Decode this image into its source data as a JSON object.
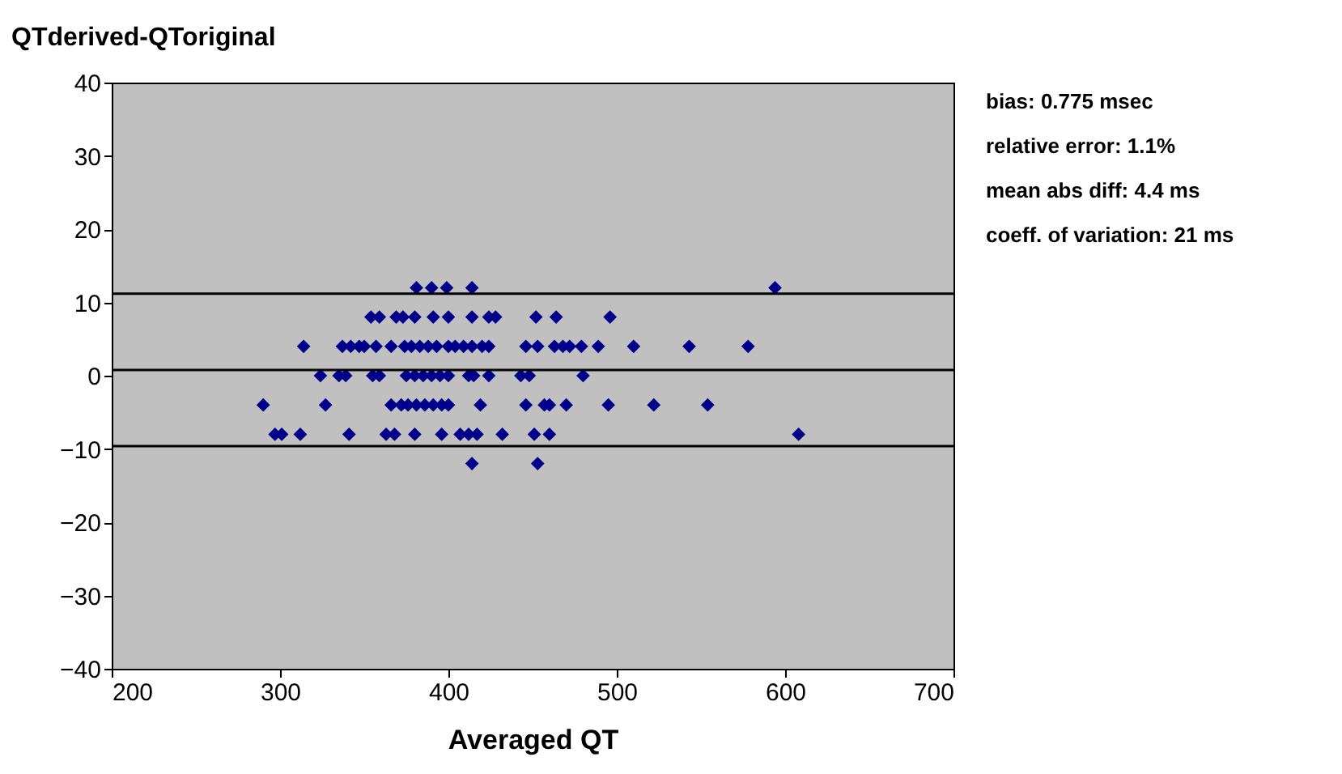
{
  "chart_data": {
    "type": "scatter",
    "title": "QTderived-QToriginal",
    "xlabel": "Averaged QT",
    "xlim": [
      200,
      700
    ],
    "xticks": [
      200,
      300,
      400,
      500,
      600,
      700
    ],
    "ylim": [
      -40,
      40
    ],
    "yticks": [
      -40,
      -30,
      -20,
      -10,
      0,
      10,
      20,
      30,
      40
    ],
    "grid": false,
    "marker": "diamond",
    "series": [
      {
        "color": "#00008b",
        "x": [
          381,
          390,
          399,
          414,
          594,
          354,
          359,
          369,
          373,
          380,
          391,
          400,
          414,
          424,
          428,
          452,
          464,
          496,
          314,
          337,
          342,
          347,
          350,
          357,
          366,
          374,
          378,
          383,
          388,
          393,
          400,
          404,
          409,
          414,
          420,
          424,
          446,
          453,
          463,
          468,
          472,
          479,
          489,
          510,
          543,
          578,
          324,
          335,
          339,
          355,
          359,
          375,
          380,
          385,
          390,
          395,
          400,
          412,
          415,
          424,
          443,
          448,
          480,
          290,
          327,
          366,
          372,
          376,
          381,
          386,
          391,
          396,
          400,
          419,
          446,
          457,
          460,
          470,
          495,
          522,
          554,
          297,
          301,
          312,
          341,
          363,
          368,
          380,
          396,
          407,
          412,
          417,
          432,
          451,
          460,
          608,
          414,
          453
        ],
        "values": [
          12,
          12,
          12,
          12,
          12,
          8,
          8,
          8,
          8,
          8,
          8,
          8,
          8,
          8,
          8,
          8,
          8,
          8,
          4,
          4,
          4,
          4,
          4,
          4,
          4,
          4,
          4,
          4,
          4,
          4,
          4,
          4,
          4,
          4,
          4,
          4,
          4,
          4,
          4,
          4,
          4,
          4,
          4,
          4,
          4,
          4,
          0,
          0,
          0,
          0,
          0,
          0,
          0,
          0,
          0,
          0,
          0,
          0,
          0,
          0,
          0,
          0,
          0,
          -4,
          -4,
          -4,
          -4,
          -4,
          -4,
          -4,
          -4,
          -4,
          -4,
          -4,
          -4,
          -4,
          -4,
          -4,
          -4,
          -4,
          -4,
          -8,
          -8,
          -8,
          -8,
          -8,
          -8,
          -8,
          -8,
          -8,
          -8,
          -8,
          -8,
          -8,
          -8,
          -8,
          -12,
          -12
        ]
      }
    ],
    "ref_lines": [
      {
        "axis": "y",
        "value": 11.2,
        "color": "#000000"
      },
      {
        "axis": "y",
        "value": 0.775,
        "color": "#000000"
      },
      {
        "axis": "y",
        "value": -9.6,
        "color": "#000000"
      }
    ],
    "annotations": [
      "bias: 0.775 msec",
      "relative error: 1.1%",
      "mean abs diff: 4.4 ms",
      "coeff. of variation: 21 ms"
    ]
  }
}
